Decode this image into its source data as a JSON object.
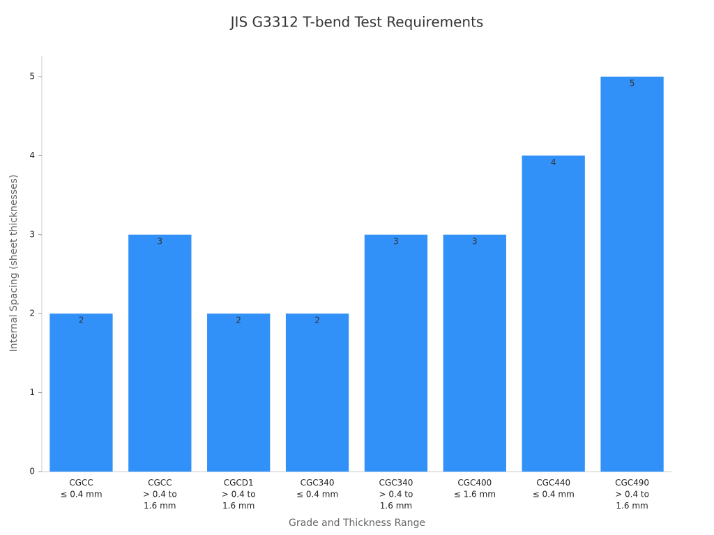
{
  "chart_data": {
    "type": "bar",
    "title": "JIS G3312 T-bend Test Requirements",
    "x_label": "Grade and Thickness Range",
    "y_label": "Internal Spacing (sheet thicknesses)",
    "categories": [
      "CGCC\n≤ 0.4 mm",
      "CGCC\n> 0.4 to\n1.6 mm",
      "CGCD1\n> 0.4 to\n1.6 mm",
      "CGC340\n≤ 0.4 mm",
      "CGC340\n> 0.4 to\n1.6 mm",
      "CGC400\n≤ 1.6 mm",
      "CGC440\n≤ 0.4 mm",
      "CGC490\n> 0.4 to\n1.6 mm"
    ],
    "values": [
      2,
      3,
      2,
      2,
      3,
      3,
      4,
      5
    ],
    "color": "#3291f8",
    "ylim": [
      0,
      5
    ],
    "yticks": [
      0,
      1,
      2,
      3,
      4,
      5
    ],
    "grid": false
  }
}
